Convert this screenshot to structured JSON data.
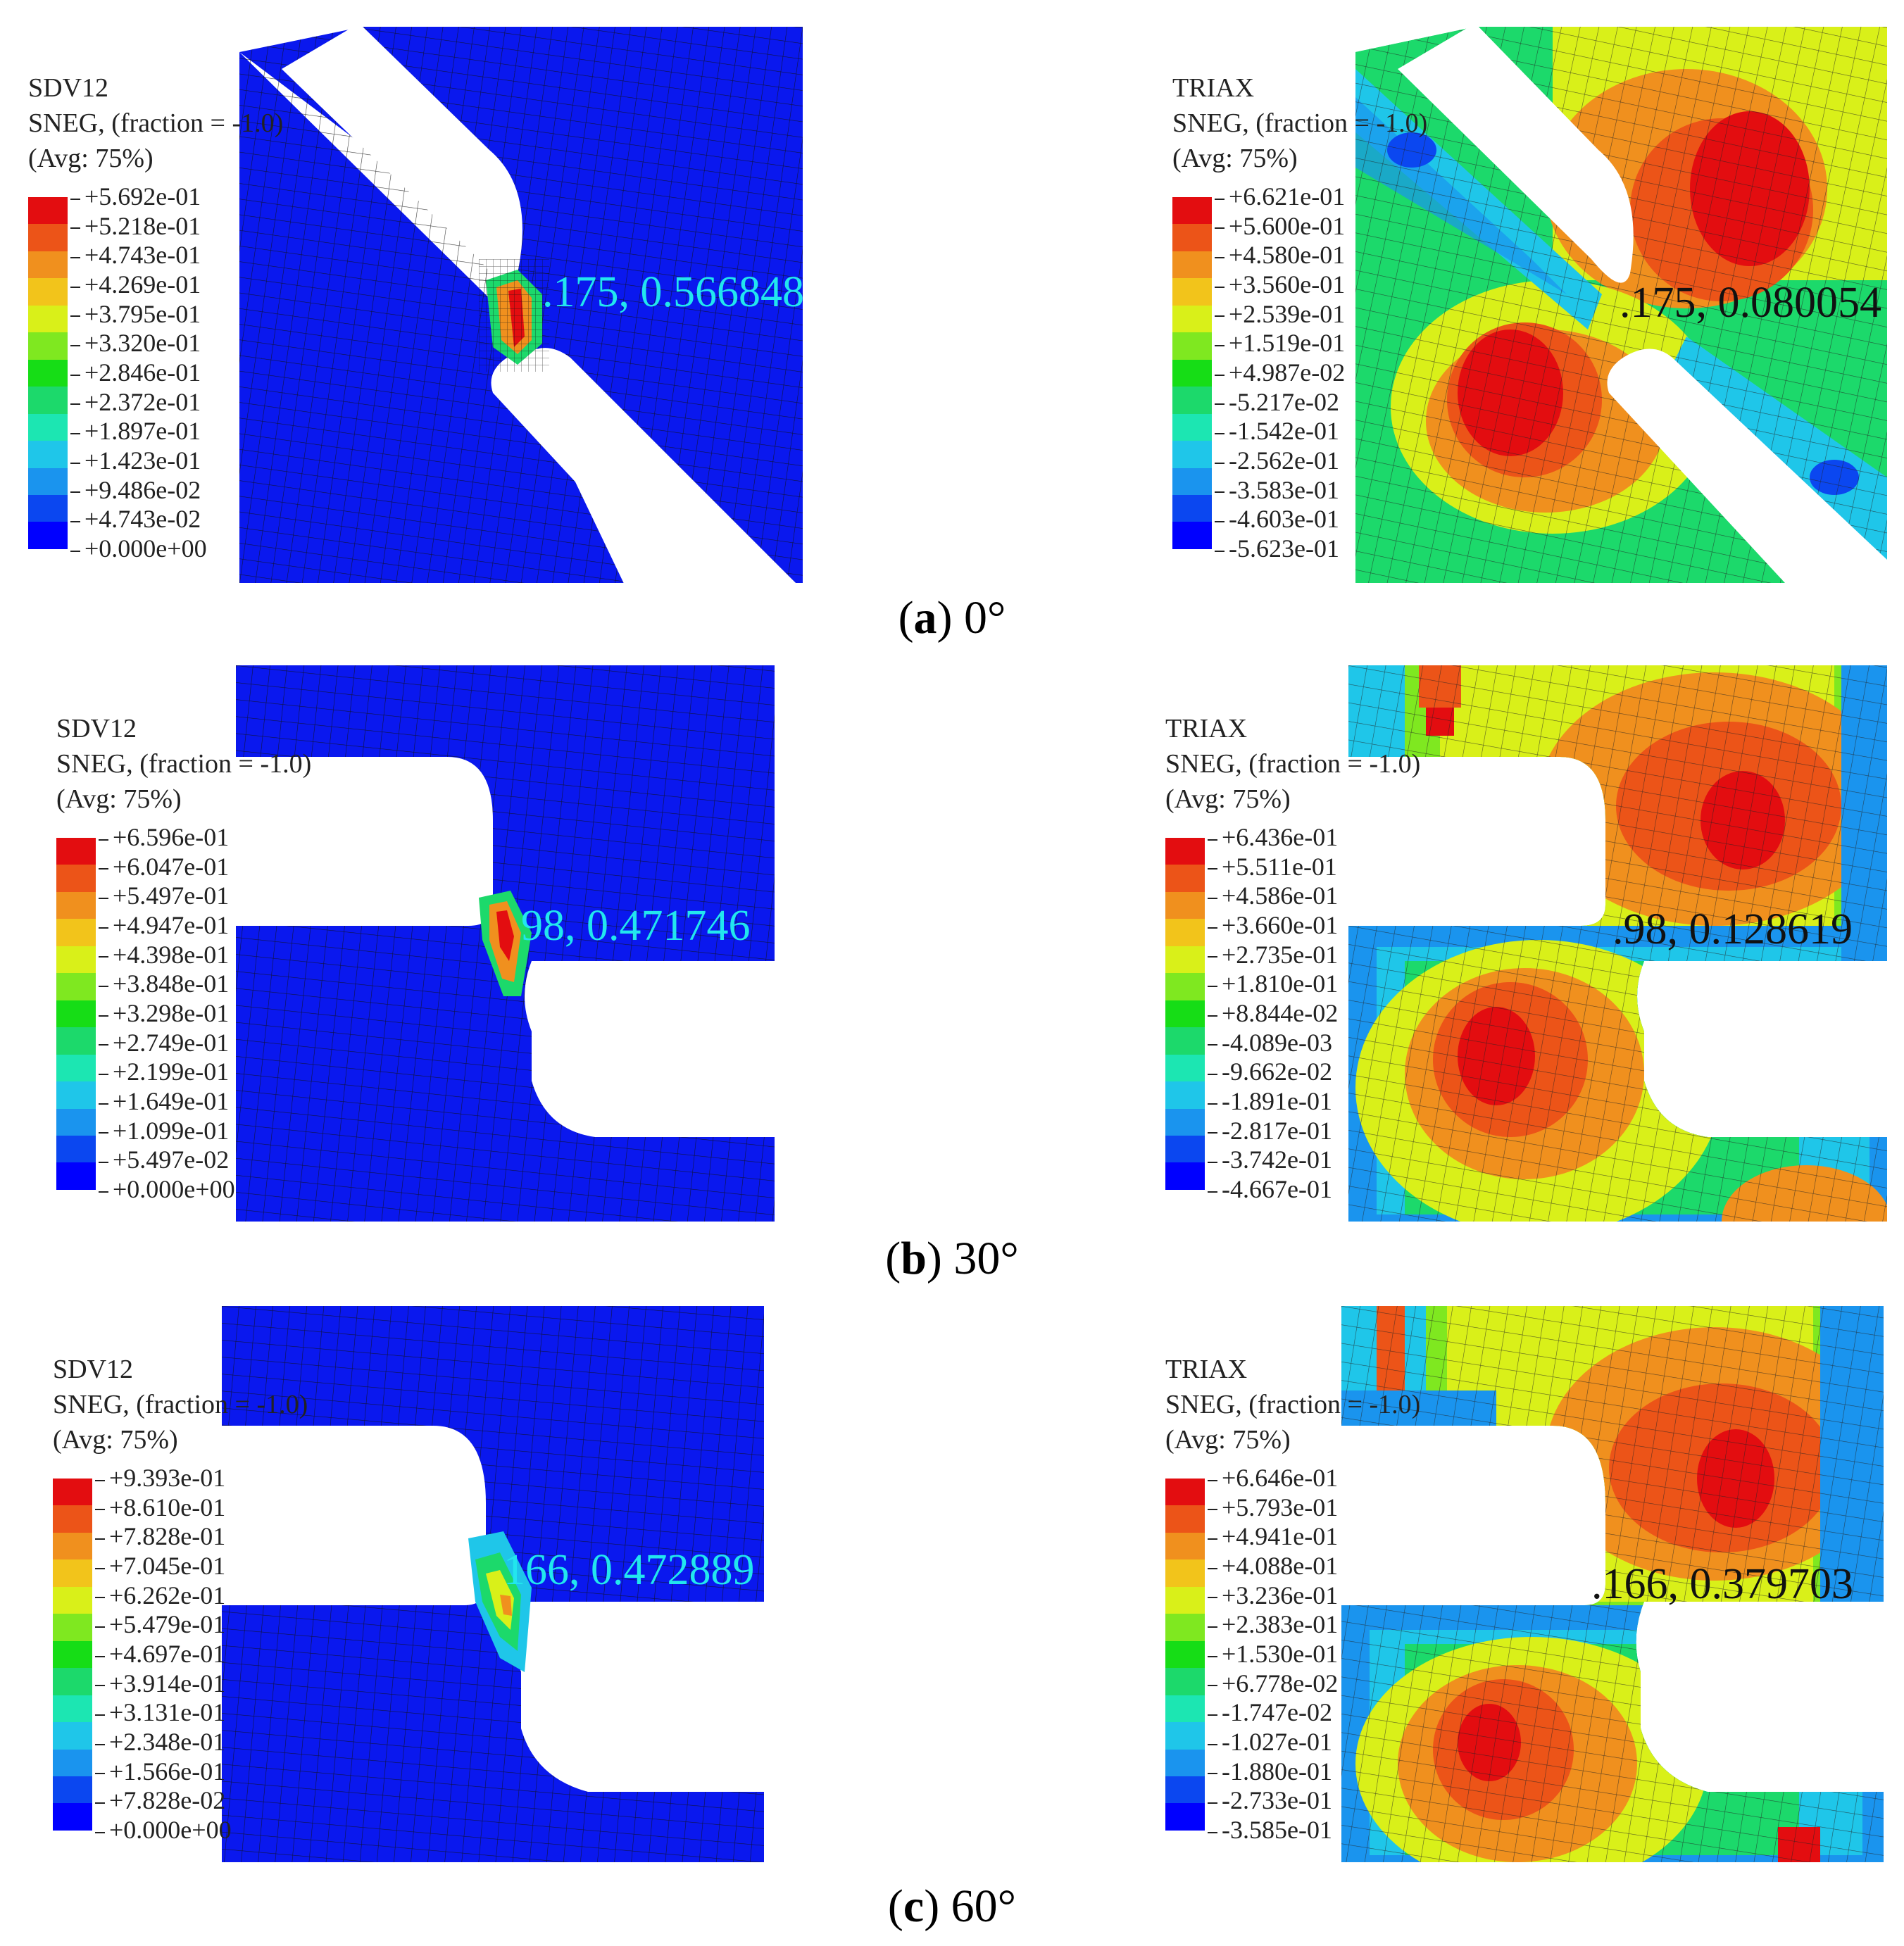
{
  "colormap": [
    "#0000ff",
    "#0b47f0",
    "#1a94ee",
    "#1fc6e9",
    "#1ce6b2",
    "#1cd96b",
    "#16dd16",
    "#7fe820",
    "#d9f019",
    "#f2c41b",
    "#f0901e",
    "#ec5418",
    "#e30d10"
  ],
  "panels": [
    {
      "caption_letter": "a",
      "caption_angle": "0°",
      "left": {
        "var": "SDV12",
        "line2": "SNEG, (fraction = -1.0)",
        "line3": "(Avg: 75%)",
        "values": [
          "+5.692e-01",
          "+5.218e-01",
          "+4.743e-01",
          "+4.269e-01",
          "+3.795e-01",
          "+3.320e-01",
          "+2.846e-01",
          "+2.372e-01",
          "+1.897e-01",
          "+1.423e-01",
          "+9.486e-02",
          "+4.743e-02",
          "+0.000e+00"
        ],
        "probe": ".175, 0.566848"
      },
      "right": {
        "var": "TRIAX",
        "line2": "SNEG, (fraction = -1.0)",
        "line3": "(Avg: 75%)",
        "values": [
          "+6.621e-01",
          "+5.600e-01",
          "+4.580e-01",
          "+3.560e-01",
          "+2.539e-01",
          "+1.519e-01",
          "+4.987e-02",
          "-5.217e-02",
          "-1.542e-01",
          "-2.562e-01",
          "-3.583e-01",
          "-4.603e-01",
          "-5.623e-01"
        ],
        "probe": ".175, 0.080054"
      }
    },
    {
      "caption_letter": "b",
      "caption_angle": "30°",
      "left": {
        "var": "SDV12",
        "line2": "SNEG, (fraction = -1.0)",
        "line3": "(Avg: 75%)",
        "values": [
          "+6.596e-01",
          "+6.047e-01",
          "+5.497e-01",
          "+4.947e-01",
          "+4.398e-01",
          "+3.848e-01",
          "+3.298e-01",
          "+2.749e-01",
          "+2.199e-01",
          "+1.649e-01",
          "+1.099e-01",
          "+5.497e-02",
          "+0.000e+00"
        ],
        "probe": "98, 0.471746"
      },
      "right": {
        "var": "TRIAX",
        "line2": "SNEG, (fraction = -1.0)",
        "line3": "(Avg: 75%)",
        "values": [
          "+6.436e-01",
          "+5.511e-01",
          "+4.586e-01",
          "+3.660e-01",
          "+2.735e-01",
          "+1.810e-01",
          "+8.844e-02",
          "-4.089e-03",
          "-9.662e-02",
          "-1.891e-01",
          "-2.817e-01",
          "-3.742e-01",
          "-4.667e-01"
        ],
        "probe": ".98, 0.128619"
      }
    },
    {
      "caption_letter": "c",
      "caption_angle": "60°",
      "left": {
        "var": "SDV12",
        "line2": "SNEG, (fraction = -1.0)",
        "line3": "(Avg: 75%)",
        "values": [
          "+9.393e-01",
          "+8.610e-01",
          "+7.828e-01",
          "+7.045e-01",
          "+6.262e-01",
          "+5.479e-01",
          "+4.697e-01",
          "+3.914e-01",
          "+3.131e-01",
          "+2.348e-01",
          "+1.566e-01",
          "+7.828e-02",
          "+0.000e+00"
        ],
        "probe": "166, 0.472889"
      },
      "right": {
        "var": "TRIAX",
        "line2": "SNEG, (fraction = -1.0)",
        "line3": "(Avg: 75%)",
        "values": [
          "+6.646e-01",
          "+5.793e-01",
          "+4.941e-01",
          "+4.088e-01",
          "+3.236e-01",
          "+2.383e-01",
          "+1.530e-01",
          "+6.778e-02",
          "-1.747e-02",
          "-1.027e-01",
          "-1.880e-01",
          "-2.733e-01",
          "-3.585e-01"
        ],
        "probe": ".166, 0.379703"
      }
    }
  ]
}
